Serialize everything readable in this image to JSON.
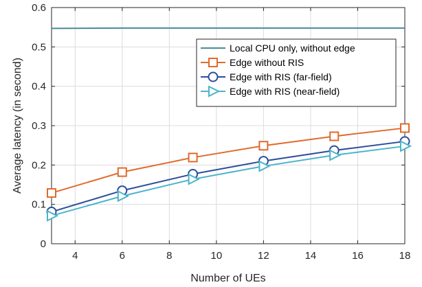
{
  "chart_data": {
    "type": "line",
    "title": "",
    "xlabel": "Number of UEs",
    "ylabel": "Average latency (in second)",
    "xlim": [
      3,
      18
    ],
    "ylim": [
      0,
      0.6
    ],
    "xticks": [
      4,
      6,
      8,
      10,
      12,
      14,
      16,
      18
    ],
    "yticks": [
      0,
      0.1,
      0.2,
      0.3,
      0.4,
      0.5,
      0.6
    ],
    "xtick_labels": [
      "4",
      "6",
      "8",
      "10",
      "12",
      "14",
      "16",
      "18"
    ],
    "ytick_labels": [
      "0",
      "0.1",
      "0.2",
      "0.3",
      "0.4",
      "0.5",
      "0.6"
    ],
    "grid": true,
    "legend_position": "upper right",
    "series": [
      {
        "name": "Local CPU only, without edge",
        "color": "#4a8a99",
        "marker": "none",
        "x": [
          3,
          6,
          9,
          12,
          15,
          18
        ],
        "y": [
          0.547,
          0.548,
          0.548,
          0.548,
          0.548,
          0.548
        ]
      },
      {
        "name": "Edge without RIS",
        "color": "#e06a2c",
        "marker": "square",
        "x": [
          3,
          6,
          9,
          12,
          15,
          18
        ],
        "y": [
          0.129,
          0.182,
          0.219,
          0.249,
          0.273,
          0.294
        ]
      },
      {
        "name": "Edge with RIS (far-field)",
        "color": "#2b4d9a",
        "marker": "circle",
        "x": [
          3,
          6,
          9,
          12,
          15,
          18
        ],
        "y": [
          0.081,
          0.135,
          0.177,
          0.21,
          0.237,
          0.26
        ]
      },
      {
        "name": "Edge with RIS (near-field)",
        "color": "#4bb3cc",
        "marker": "triangle-right",
        "x": [
          3,
          6,
          9,
          12,
          15,
          18
        ],
        "y": [
          0.071,
          0.121,
          0.164,
          0.197,
          0.225,
          0.248
        ]
      }
    ]
  }
}
